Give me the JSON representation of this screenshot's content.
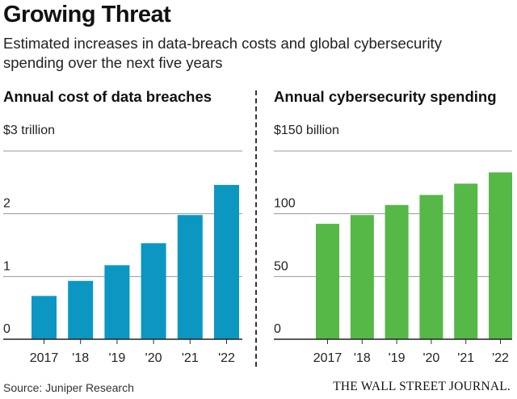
{
  "header": {
    "title": "Growing Threat",
    "subtitle": "Estimated increases in data-breach costs and global cybersecurity spending over the next five years"
  },
  "footer": {
    "source": "Source: Juniper Research",
    "brand": "THE WALL STREET JOURNAL."
  },
  "chart_data": [
    {
      "type": "bar",
      "title": "Annual cost of data breaches",
      "unit_label": "$3 trillion",
      "categories": [
        "2017",
        "'18",
        "'19",
        "'20",
        "'21",
        "'22"
      ],
      "values": [
        0.69,
        0.93,
        1.18,
        1.53,
        1.98,
        2.46
      ],
      "ylim": [
        0,
        3
      ],
      "yticks": [
        0,
        1,
        2
      ],
      "ytick_labels": [
        "0",
        "1",
        "2"
      ],
      "color": "#0c97c2",
      "grid": true
    },
    {
      "type": "bar",
      "title": "Annual cybersecurity spending",
      "unit_label": "$150 billion",
      "categories": [
        "2017",
        "'18",
        "'19",
        "'20",
        "'21",
        "'22"
      ],
      "values": [
        92,
        99,
        107,
        115,
        124,
        133
      ],
      "ylim": [
        0,
        150
      ],
      "yticks": [
        0,
        50,
        100
      ],
      "ytick_labels": [
        "0",
        "50",
        "100"
      ],
      "color": "#55b847",
      "grid": true
    }
  ]
}
